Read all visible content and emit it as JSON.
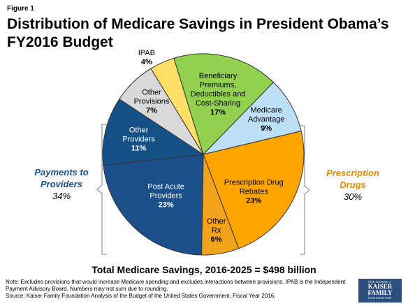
{
  "figure_label": "Figure 1",
  "title": "Distribution of Medicare Savings in President Obama’s FY2016 Budget",
  "total_label": "Total Medicare Savings, 2016-2025 = $498 billion",
  "notes": {
    "note": "Note: Excludes provisions that would increase Medicare spending and excludes interactions between provisions. IPAB is the Independent Payment Advisory Board. Numbers may not sum due to rounding.",
    "source": "Source: Kaiser Family Foundation Analysis of the Budget of the United States Government, Fiscal Year 2016."
  },
  "logo": {
    "line1": "THE HENRY J.",
    "line2a": "KAISER",
    "line2b": "FAMILY",
    "line3": "FOUNDATION"
  },
  "chart_data": {
    "type": "pie",
    "slices": [
      {
        "label": "Beneficiary Premiums, Deductibles and Cost-Sharing",
        "lines": [
          "Beneficiary",
          "Premiums,",
          "Deductibles and",
          "Cost-Sharing"
        ],
        "pct_label": "17%",
        "value": 17,
        "color": "#92d050",
        "text_color": "#000000"
      },
      {
        "label": "Medicare Advantage",
        "lines": [
          "Medicare",
          "Advantage"
        ],
        "pct_label": "9%",
        "value": 9,
        "color": "#bde0f6",
        "text_color": "#000000"
      },
      {
        "label": "Prescription Drug Rebates",
        "lines": [
          "Prescription Drug",
          "Rebates"
        ],
        "pct_label": "23%",
        "value": 23,
        "color": "#ffa500",
        "text_color": "#000000"
      },
      {
        "label": "Other Rx",
        "lines": [
          "Other",
          "Rx"
        ],
        "pct_label": "6%",
        "value": 6,
        "color": "#f2a31c",
        "text_color": "#000000"
      },
      {
        "label": "Post Acute Providers",
        "lines": [
          "Post Acute",
          "Providers"
        ],
        "pct_label": "23%",
        "value": 23,
        "color": "#1a4f8a",
        "text_color": "#ffffff"
      },
      {
        "label": "Other Providers",
        "lines": [
          "Other",
          "Providers"
        ],
        "pct_label": "11%",
        "value": 11,
        "color": "#155087",
        "text_color": "#ffffff"
      },
      {
        "label": "Other Provisions",
        "lines": [
          "Other",
          "Provisions"
        ],
        "pct_label": "7%",
        "value": 7,
        "color": "#d9d9d9",
        "text_color": "#000000"
      },
      {
        "label": "IPAB",
        "lines": [
          "IPAB"
        ],
        "pct_label": "4%",
        "value": 4,
        "color": "#ffe066",
        "text_color": "#000000"
      }
    ],
    "groups": [
      {
        "label_lines": [
          "Payments to",
          "Providers"
        ],
        "pct_label": "34%",
        "color": "#1a4f8a",
        "side": "left"
      },
      {
        "label_lines": [
          "Prescription",
          "Drugs"
        ],
        "pct_label": "30%",
        "color": "#e68a00",
        "side": "right"
      }
    ]
  }
}
